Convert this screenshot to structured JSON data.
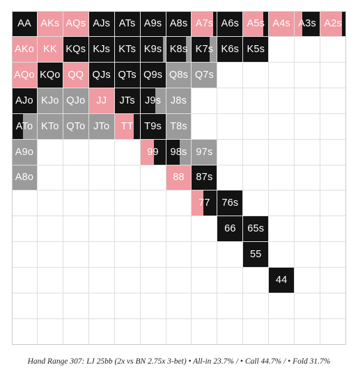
{
  "colors": {
    "allin": "#f09aa2",
    "call": "#131313",
    "fold": "#9b9b9b",
    "empty": "#ffffff"
  },
  "caption": "Hand Range 307: LJ 25bb (2x vs BN 2.75x 3-bet) • All-in 23.7% / • Call 44.7% / • Fold 31.7%",
  "ranks": [
    "A",
    "K",
    "Q",
    "J",
    "T",
    "9",
    "8",
    "7",
    "6",
    "5",
    "4",
    "3",
    "2"
  ],
  "cells": [
    {
      "hand": "AA",
      "row": 0,
      "col": 0,
      "mix": {
        "allin": 0,
        "call": 1,
        "fold": 0
      }
    },
    {
      "hand": "AKs",
      "row": 0,
      "col": 1,
      "mix": {
        "allin": 1,
        "call": 0,
        "fold": 0
      }
    },
    {
      "hand": "AQs",
      "row": 0,
      "col": 2,
      "mix": {
        "allin": 1,
        "call": 0,
        "fold": 0
      }
    },
    {
      "hand": "AJs",
      "row": 0,
      "col": 3,
      "mix": {
        "allin": 0,
        "call": 1,
        "fold": 0
      }
    },
    {
      "hand": "ATs",
      "row": 0,
      "col": 4,
      "mix": {
        "allin": 0,
        "call": 1,
        "fold": 0
      }
    },
    {
      "hand": "A9s",
      "row": 0,
      "col": 5,
      "mix": {
        "allin": 0,
        "call": 1,
        "fold": 0
      }
    },
    {
      "hand": "A8s",
      "row": 0,
      "col": 6,
      "mix": {
        "allin": 0,
        "call": 1,
        "fold": 0
      }
    },
    {
      "hand": "A7s",
      "row": 0,
      "col": 7,
      "mix": {
        "allin": 0.85,
        "call": 0.15,
        "fold": 0
      }
    },
    {
      "hand": "A6s",
      "row": 0,
      "col": 8,
      "mix": {
        "allin": 0,
        "call": 1,
        "fold": 0
      }
    },
    {
      "hand": "A5s",
      "row": 0,
      "col": 9,
      "mix": {
        "allin": 0.8,
        "call": 0.2,
        "fold": 0
      }
    },
    {
      "hand": "A4s",
      "row": 0,
      "col": 10,
      "mix": {
        "allin": 1,
        "call": 0,
        "fold": 0
      }
    },
    {
      "hand": "A3s",
      "row": 0,
      "col": 11,
      "mix": {
        "allin": 0.3,
        "call": 0.7,
        "fold": 0
      }
    },
    {
      "hand": "A2s",
      "row": 0,
      "col": 12,
      "mix": {
        "allin": 0.85,
        "call": 0.15,
        "fold": 0
      }
    },
    {
      "hand": "AKo",
      "row": 1,
      "col": 0,
      "mix": {
        "allin": 1,
        "call": 0,
        "fold": 0
      }
    },
    {
      "hand": "KK",
      "row": 1,
      "col": 1,
      "mix": {
        "allin": 1,
        "call": 0,
        "fold": 0
      }
    },
    {
      "hand": "KQs",
      "row": 1,
      "col": 2,
      "mix": {
        "allin": 0,
        "call": 1,
        "fold": 0
      }
    },
    {
      "hand": "KJs",
      "row": 1,
      "col": 3,
      "mix": {
        "allin": 0,
        "call": 1,
        "fold": 0
      }
    },
    {
      "hand": "KTs",
      "row": 1,
      "col": 4,
      "mix": {
        "allin": 0,
        "call": 1,
        "fold": 0
      }
    },
    {
      "hand": "K9s",
      "row": 1,
      "col": 5,
      "mix": {
        "allin": 0,
        "call": 0.9,
        "fold": 0.1
      }
    },
    {
      "hand": "K8s",
      "row": 1,
      "col": 6,
      "mix": {
        "allin": 0,
        "call": 0.8,
        "fold": 0.2
      }
    },
    {
      "hand": "K7s",
      "row": 1,
      "col": 7,
      "mix": {
        "allin": 0,
        "call": 0.7,
        "fold": 0.3
      }
    },
    {
      "hand": "K6s",
      "row": 1,
      "col": 8,
      "mix": {
        "allin": 0,
        "call": 1,
        "fold": 0
      }
    },
    {
      "hand": "K5s",
      "row": 1,
      "col": 9,
      "mix": {
        "allin": 0,
        "call": 1,
        "fold": 0
      }
    },
    {
      "hand": "AQo",
      "row": 2,
      "col": 0,
      "mix": {
        "allin": 1,
        "call": 0,
        "fold": 0
      }
    },
    {
      "hand": "KQo",
      "row": 2,
      "col": 1,
      "mix": {
        "allin": 0,
        "call": 1,
        "fold": 0
      }
    },
    {
      "hand": "QQ",
      "row": 2,
      "col": 2,
      "mix": {
        "allin": 1,
        "call": 0,
        "fold": 0
      }
    },
    {
      "hand": "QJs",
      "row": 2,
      "col": 3,
      "mix": {
        "allin": 0,
        "call": 1,
        "fold": 0
      }
    },
    {
      "hand": "QTs",
      "row": 2,
      "col": 4,
      "mix": {
        "allin": 0,
        "call": 1,
        "fold": 0
      }
    },
    {
      "hand": "Q9s",
      "row": 2,
      "col": 5,
      "mix": {
        "allin": 0,
        "call": 1,
        "fold": 0
      }
    },
    {
      "hand": "Q8s",
      "row": 2,
      "col": 6,
      "mix": {
        "allin": 0,
        "call": 0,
        "fold": 1
      }
    },
    {
      "hand": "Q7s",
      "row": 2,
      "col": 7,
      "mix": {
        "allin": 0,
        "call": 0,
        "fold": 1
      }
    },
    {
      "hand": "AJo",
      "row": 3,
      "col": 0,
      "mix": {
        "allin": 0,
        "call": 1,
        "fold": 0
      }
    },
    {
      "hand": "KJo",
      "row": 3,
      "col": 1,
      "mix": {
        "allin": 0,
        "call": 0,
        "fold": 1
      }
    },
    {
      "hand": "QJo",
      "row": 3,
      "col": 2,
      "mix": {
        "allin": 0,
        "call": 0,
        "fold": 1
      }
    },
    {
      "hand": "JJ",
      "row": 3,
      "col": 3,
      "mix": {
        "allin": 1,
        "call": 0,
        "fold": 0
      }
    },
    {
      "hand": "JTs",
      "row": 3,
      "col": 4,
      "mix": {
        "allin": 0,
        "call": 1,
        "fold": 0
      }
    },
    {
      "hand": "J9s",
      "row": 3,
      "col": 5,
      "mix": {
        "allin": 0,
        "call": 0.6,
        "fold": 0.4
      }
    },
    {
      "hand": "J8s",
      "row": 3,
      "col": 6,
      "mix": {
        "allin": 0,
        "call": 0,
        "fold": 1
      }
    },
    {
      "hand": "ATo",
      "row": 4,
      "col": 0,
      "mix": {
        "allin": 0,
        "call": 0.45,
        "fold": 0.55
      }
    },
    {
      "hand": "KTo",
      "row": 4,
      "col": 1,
      "mix": {
        "allin": 0,
        "call": 0,
        "fold": 1
      }
    },
    {
      "hand": "QTo",
      "row": 4,
      "col": 2,
      "mix": {
        "allin": 0,
        "call": 0,
        "fold": 1
      }
    },
    {
      "hand": "JTo",
      "row": 4,
      "col": 3,
      "mix": {
        "allin": 0,
        "call": 0,
        "fold": 1
      }
    },
    {
      "hand": "TT",
      "row": 4,
      "col": 4,
      "mix": {
        "allin": 0.75,
        "call": 0.25,
        "fold": 0
      }
    },
    {
      "hand": "T9s",
      "row": 4,
      "col": 5,
      "mix": {
        "allin": 0,
        "call": 1,
        "fold": 0
      }
    },
    {
      "hand": "T8s",
      "row": 4,
      "col": 6,
      "mix": {
        "allin": 0,
        "call": 0,
        "fold": 1
      }
    },
    {
      "hand": "A9o",
      "row": 5,
      "col": 0,
      "mix": {
        "allin": 0,
        "call": 0,
        "fold": 1
      }
    },
    {
      "hand": "99",
      "row": 5,
      "col": 5,
      "mix": {
        "allin": 0.55,
        "call": 0.45,
        "fold": 0
      }
    },
    {
      "hand": "98s",
      "row": 5,
      "col": 6,
      "mix": {
        "allin": 0,
        "call": 0.55,
        "fold": 0.45
      }
    },
    {
      "hand": "97s",
      "row": 5,
      "col": 7,
      "mix": {
        "allin": 0,
        "call": 0,
        "fold": 1
      }
    },
    {
      "hand": "A8o",
      "row": 6,
      "col": 0,
      "mix": {
        "allin": 0,
        "call": 0,
        "fold": 1
      }
    },
    {
      "hand": "88",
      "row": 6,
      "col": 6,
      "mix": {
        "allin": 1,
        "call": 0,
        "fold": 0
      }
    },
    {
      "hand": "87s",
      "row": 6,
      "col": 7,
      "mix": {
        "allin": 0,
        "call": 1,
        "fold": 0
      }
    },
    {
      "hand": "77",
      "row": 7,
      "col": 7,
      "mix": {
        "allin": 0.45,
        "call": 0.55,
        "fold": 0
      }
    },
    {
      "hand": "76s",
      "row": 7,
      "col": 8,
      "mix": {
        "allin": 0,
        "call": 1,
        "fold": 0
      }
    },
    {
      "hand": "66",
      "row": 8,
      "col": 8,
      "mix": {
        "allin": 0,
        "call": 1,
        "fold": 0
      }
    },
    {
      "hand": "65s",
      "row": 8,
      "col": 9,
      "mix": {
        "allin": 0,
        "call": 1,
        "fold": 0
      }
    },
    {
      "hand": "55",
      "row": 9,
      "col": 9,
      "mix": {
        "allin": 0,
        "call": 1,
        "fold": 0
      }
    },
    {
      "hand": "44",
      "row": 10,
      "col": 10,
      "mix": {
        "allin": 0,
        "call": 1,
        "fold": 0
      }
    }
  ]
}
